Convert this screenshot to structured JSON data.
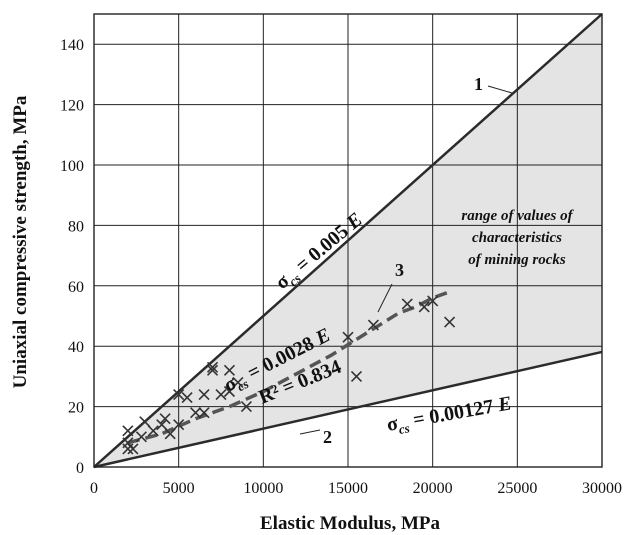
{
  "chart_data": {
    "type": "scatter",
    "xlabel": "Elastic Modulus, MPa",
    "ylabel": "Uniaxial compressive strength, MPa",
    "xlim": [
      0,
      30000
    ],
    "ylim": [
      0,
      150
    ],
    "x_ticks": [
      0,
      5000,
      10000,
      15000,
      20000,
      25000,
      30000
    ],
    "y_ticks": [
      0,
      20,
      40,
      60,
      80,
      100,
      120,
      140
    ],
    "grid": true,
    "shaded_region": {
      "label_lines": [
        "range of values of",
        "characteristics",
        "of mining rocks"
      ],
      "fill": "#e4e4e4"
    },
    "lines": [
      {
        "id": "1",
        "equation": "σcs = 0.005 E",
        "main": "σ",
        "sub": "cs",
        "rest": " = 0.005 ",
        "var": "E",
        "x": [
          0,
          30000
        ],
        "y": [
          0,
          150
        ]
      },
      {
        "id": "2",
        "equation": "σcs = 0.00127 E",
        "main": "σ",
        "sub": "cs",
        "rest": " = 0.00127 ",
        "var": "E",
        "x": [
          0,
          30000
        ],
        "y": [
          0,
          38.1
        ]
      },
      {
        "id": "3",
        "equation": "σcs = 0.0028 E",
        "main": "σ",
        "sub": "cs",
        "rest": " = 0.0028 ",
        "var": "E",
        "r2_label": "R² = 0.834",
        "x": [
          2000,
          4000,
          6000,
          8000,
          10000,
          12000,
          14000,
          16000,
          18000,
          19000,
          20000,
          21000
        ],
        "y": [
          8,
          11,
          16,
          20,
          25,
          31,
          37,
          44,
          51,
          53,
          56,
          58
        ]
      }
    ],
    "colors": {
      "line": "#2b2b2b",
      "dashed": "#555555",
      "marker": "#333333",
      "fill": "#e4e4e4"
    },
    "points": [
      {
        "x": 2000,
        "y": 12
      },
      {
        "x": 2000,
        "y": 8
      },
      {
        "x": 2000,
        "y": 6
      },
      {
        "x": 2300,
        "y": 6
      },
      {
        "x": 2800,
        "y": 10
      },
      {
        "x": 3000,
        "y": 15
      },
      {
        "x": 3500,
        "y": 12
      },
      {
        "x": 4000,
        "y": 14
      },
      {
        "x": 4200,
        "y": 16
      },
      {
        "x": 4500,
        "y": 11
      },
      {
        "x": 5000,
        "y": 24
      },
      {
        "x": 5000,
        "y": 14
      },
      {
        "x": 5500,
        "y": 23
      },
      {
        "x": 6000,
        "y": 18
      },
      {
        "x": 6500,
        "y": 24
      },
      {
        "x": 6500,
        "y": 18
      },
      {
        "x": 7000,
        "y": 32
      },
      {
        "x": 7000,
        "y": 33
      },
      {
        "x": 7500,
        "y": 24
      },
      {
        "x": 8000,
        "y": 32
      },
      {
        "x": 8000,
        "y": 25
      },
      {
        "x": 8500,
        "y": 28
      },
      {
        "x": 9000,
        "y": 20
      },
      {
        "x": 15000,
        "y": 43
      },
      {
        "x": 15500,
        "y": 30
      },
      {
        "x": 16500,
        "y": 47
      },
      {
        "x": 18500,
        "y": 54
      },
      {
        "x": 19500,
        "y": 53
      },
      {
        "x": 20000,
        "y": 55
      },
      {
        "x": 21000,
        "y": 48
      }
    ]
  }
}
